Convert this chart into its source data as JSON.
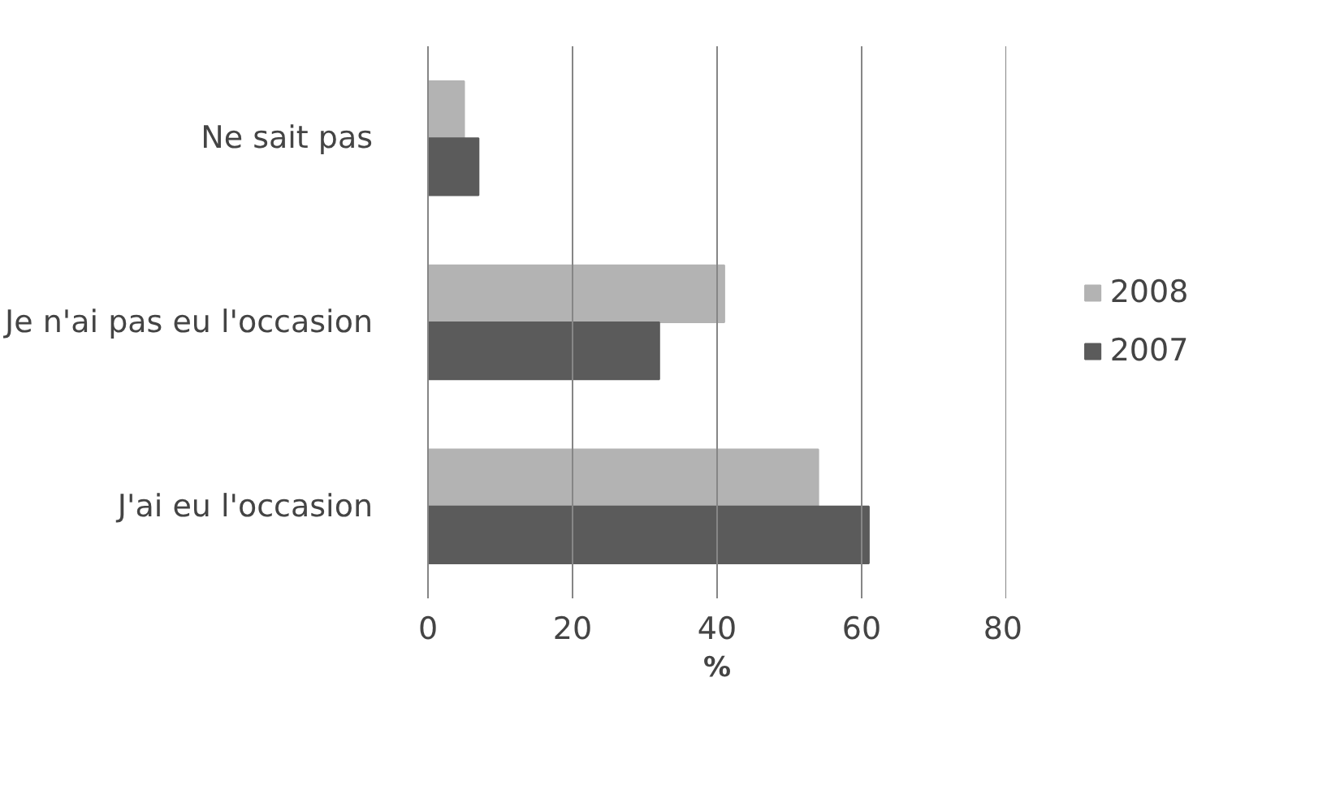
{
  "chart_data": {
    "type": "bar",
    "orientation": "horizontal",
    "xlabel": "%",
    "categories": [
      "Ne sait pas",
      "Je n'ai pas eu l'occasion",
      "J'ai eu l'occasion"
    ],
    "series": [
      {
        "name": "2008",
        "color": "#b3b3b3",
        "values": [
          5,
          41,
          54
        ]
      },
      {
        "name": "2007",
        "color": "#5b5b5b",
        "values": [
          7,
          32,
          61
        ]
      }
    ],
    "xlim": [
      0,
      80
    ],
    "xticks": [
      0,
      20,
      40,
      60,
      80
    ],
    "grid": "x",
    "legend": "right"
  }
}
